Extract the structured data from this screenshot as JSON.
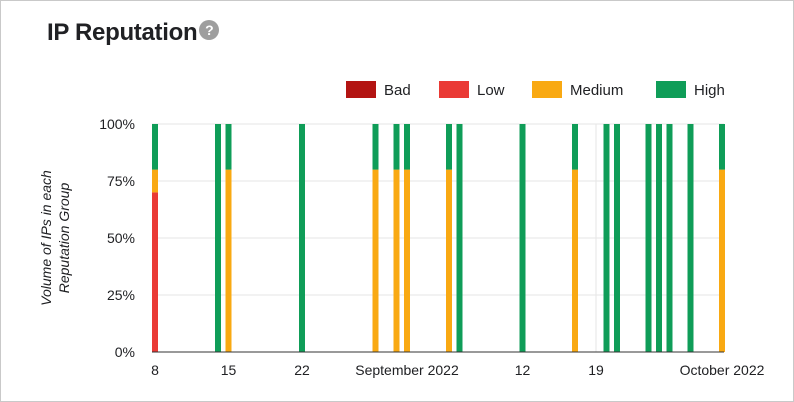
{
  "header": {
    "title": "IP Reputation",
    "help_glyph": "?"
  },
  "chart_data": {
    "type": "bar",
    "stacked": true,
    "ylabel": [
      "Volume of IPs in each",
      "Reputation Group"
    ],
    "yticks": [
      "0%",
      "25%",
      "50%",
      "75%",
      "100%"
    ],
    "ylim": [
      0,
      100
    ],
    "xlim": [
      "2022-08-08",
      "2022-10-01"
    ],
    "xticks": [
      {
        "date": "2022-08-08",
        "label": "8"
      },
      {
        "date": "2022-08-15",
        "label": "15"
      },
      {
        "date": "2022-08-22",
        "label": "22"
      },
      {
        "date": "2022-09-01",
        "label": "September 2022"
      },
      {
        "date": "2022-09-12",
        "label": "12"
      },
      {
        "date": "2022-09-19",
        "label": "19"
      },
      {
        "date": "2022-10-01",
        "label": "October 2022"
      }
    ],
    "legend": [
      {
        "name": "Bad",
        "color": "#b31412"
      },
      {
        "name": "Low",
        "color": "#ea3a35"
      },
      {
        "name": "Medium",
        "color": "#f9a912"
      },
      {
        "name": "High",
        "color": "#0f9d58"
      }
    ],
    "legend_position": "top-right",
    "series_order": [
      "Bad",
      "Low",
      "Medium",
      "High"
    ],
    "bars": [
      {
        "date": "2022-08-08",
        "Bad": 0,
        "Low": 70,
        "Medium": 10,
        "High": 20
      },
      {
        "date": "2022-08-14",
        "Bad": 0,
        "Low": 0,
        "Medium": 0,
        "High": 100
      },
      {
        "date": "2022-08-15",
        "Bad": 0,
        "Low": 0,
        "Medium": 80,
        "High": 20
      },
      {
        "date": "2022-08-22",
        "Bad": 0,
        "Low": 0,
        "Medium": 0,
        "High": 100
      },
      {
        "date": "2022-08-29",
        "Bad": 0,
        "Low": 0,
        "Medium": 80,
        "High": 20
      },
      {
        "date": "2022-08-31",
        "Bad": 0,
        "Low": 0,
        "Medium": 80,
        "High": 20
      },
      {
        "date": "2022-09-01",
        "Bad": 0,
        "Low": 0,
        "Medium": 80,
        "High": 20
      },
      {
        "date": "2022-09-05",
        "Bad": 0,
        "Low": 0,
        "Medium": 80,
        "High": 20
      },
      {
        "date": "2022-09-06",
        "Bad": 0,
        "Low": 0,
        "Medium": 0,
        "High": 100
      },
      {
        "date": "2022-09-12",
        "Bad": 0,
        "Low": 0,
        "Medium": 0,
        "High": 100
      },
      {
        "date": "2022-09-17",
        "Bad": 0,
        "Low": 0,
        "Medium": 80,
        "High": 20
      },
      {
        "date": "2022-09-20",
        "Bad": 0,
        "Low": 0,
        "Medium": 0,
        "High": 100
      },
      {
        "date": "2022-09-21",
        "Bad": 0,
        "Low": 0,
        "Medium": 0,
        "High": 100
      },
      {
        "date": "2022-09-24",
        "Bad": 0,
        "Low": 0,
        "Medium": 0,
        "High": 100
      },
      {
        "date": "2022-09-25",
        "Bad": 0,
        "Low": 0,
        "Medium": 0,
        "High": 100
      },
      {
        "date": "2022-09-26",
        "Bad": 0,
        "Low": 0,
        "Medium": 0,
        "High": 100
      },
      {
        "date": "2022-09-28",
        "Bad": 0,
        "Low": 0,
        "Medium": 0,
        "High": 100
      },
      {
        "date": "2022-10-01",
        "Bad": 0,
        "Low": 0,
        "Medium": 80,
        "High": 20
      }
    ],
    "grid": {
      "horizontal": true,
      "vertical": true
    }
  }
}
